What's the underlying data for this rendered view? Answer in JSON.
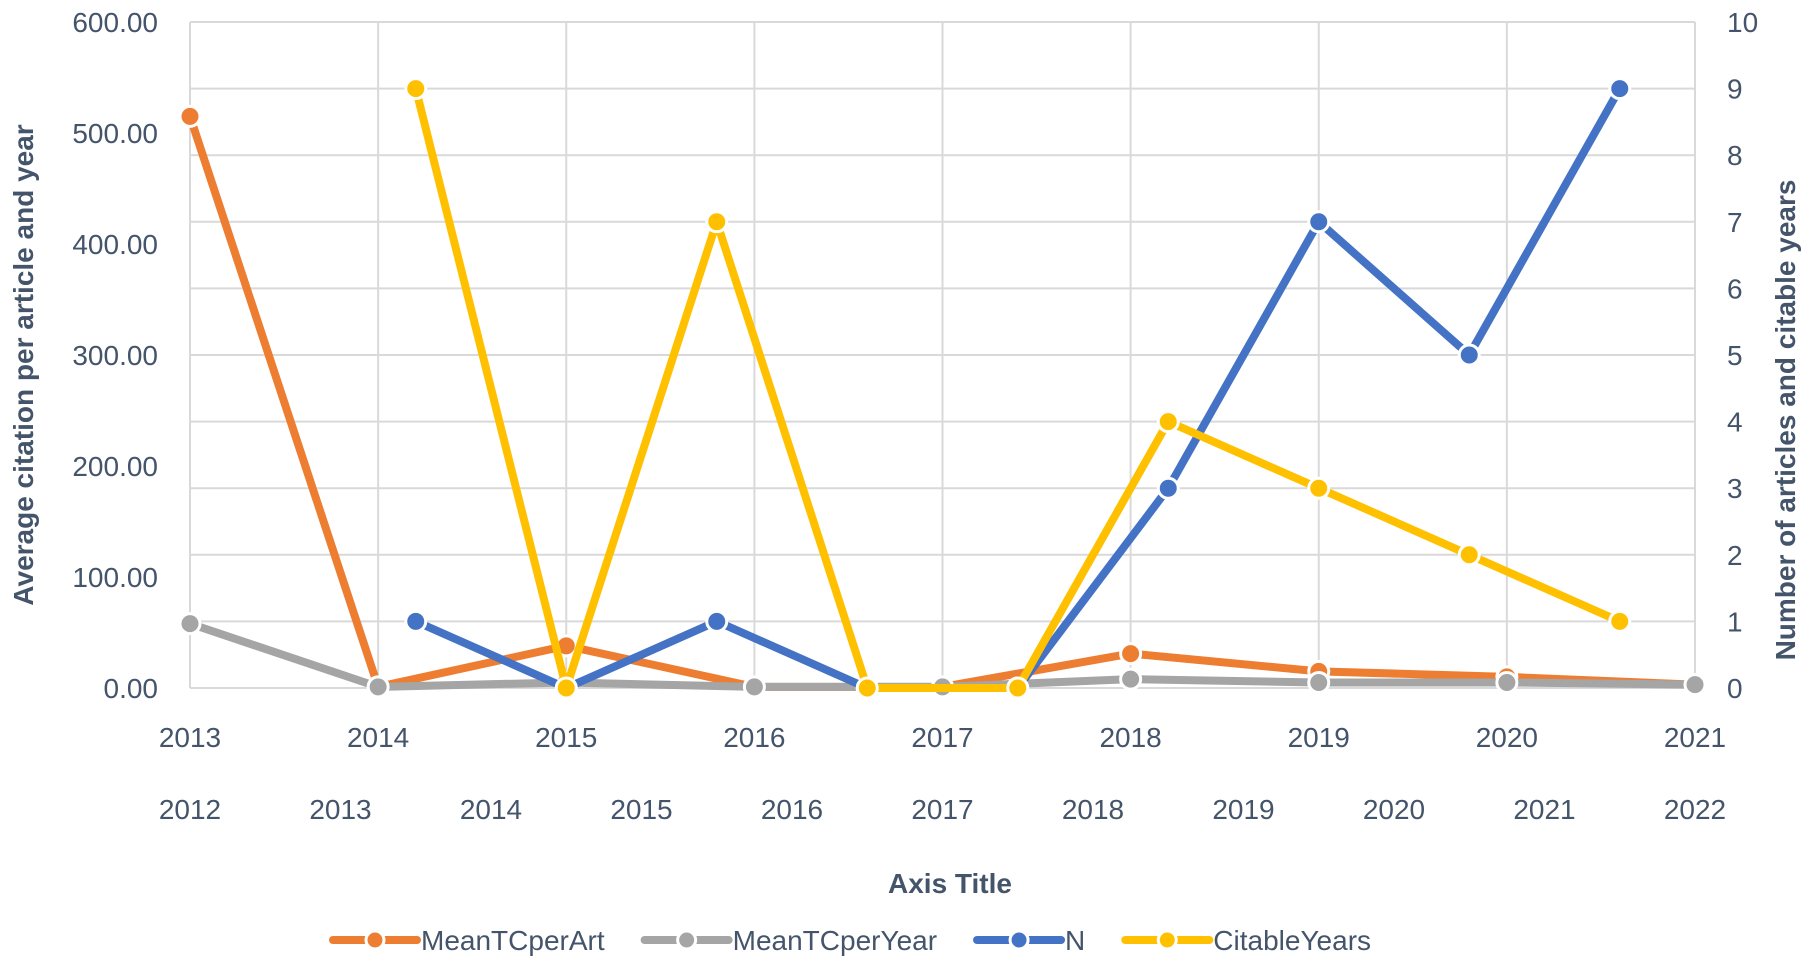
{
  "chart_data": {
    "type": "line",
    "xlabel": "Axis Title",
    "ylabel_left": "Average citation per article and year",
    "ylabel_right": "Number of articles and citable years",
    "grid": true,
    "legend_position": "bottom",
    "x_primary": [
      "2013",
      "2014",
      "2015",
      "2016",
      "2017",
      "2018",
      "2019",
      "2020",
      "2021"
    ],
    "x_secondary": [
      "2012",
      "2013",
      "2014",
      "2015",
      "2016",
      "2017",
      "2018",
      "2019",
      "2020",
      "2021",
      "2022"
    ],
    "y_left": {
      "min": 0,
      "max": 600,
      "step": 100,
      "tick_labels": [
        "0.00",
        "100.00",
        "200.00",
        "300.00",
        "400.00",
        "500.00",
        "600.00"
      ]
    },
    "y_right": {
      "min": 0,
      "max": 10,
      "step": 1,
      "tick_labels": [
        "0",
        "1",
        "2",
        "3",
        "4",
        "5",
        "6",
        "7",
        "8",
        "9",
        "10"
      ]
    },
    "series": [
      {
        "name": "MeanTCperArt",
        "axis": "primary",
        "color": "#ed7d31",
        "points": [
          {
            "x": "2013",
            "y": 515
          },
          {
            "x": "2014",
            "y": 1
          },
          {
            "x": "2015",
            "y": 38
          },
          {
            "x": "2016",
            "y": 1
          },
          {
            "x": "2017",
            "y": 1
          },
          {
            "x": "2018",
            "y": 31
          },
          {
            "x": "2019",
            "y": 15
          },
          {
            "x": "2020",
            "y": 10
          },
          {
            "x": "2021",
            "y": 3
          }
        ]
      },
      {
        "name": "MeanTCperYear",
        "axis": "primary",
        "color": "#a5a5a5",
        "points": [
          {
            "x": "2013",
            "y": 58
          },
          {
            "x": "2014",
            "y": 1
          },
          {
            "x": "2015",
            "y": 5
          },
          {
            "x": "2016",
            "y": 1
          },
          {
            "x": "2017",
            "y": 1
          },
          {
            "x": "2018",
            "y": 8
          },
          {
            "x": "2019",
            "y": 5
          },
          {
            "x": "2020",
            "y": 5
          },
          {
            "x": "2021",
            "y": 3
          }
        ]
      },
      {
        "name": "N",
        "axis": "secondary",
        "color": "#4472c4",
        "points": [
          {
            "x": "2013",
            "y": 1
          },
          {
            "x": "2014",
            "y": 0
          },
          {
            "x": "2015",
            "y": 1
          },
          {
            "x": "2016",
            "y": 0
          },
          {
            "x": "2017",
            "y": 0
          },
          {
            "x": "2018",
            "y": 3
          },
          {
            "x": "2019",
            "y": 7
          },
          {
            "x": "2020",
            "y": 5
          },
          {
            "x": "2021",
            "y": 9
          }
        ]
      },
      {
        "name": "CitableYears",
        "axis": "secondary",
        "color": "#ffc000",
        "points": [
          {
            "x": "2013",
            "y": 9
          },
          {
            "x": "2014",
            "y": 0
          },
          {
            "x": "2015",
            "y": 7
          },
          {
            "x": "2016",
            "y": 0
          },
          {
            "x": "2017",
            "y": 0
          },
          {
            "x": "2018",
            "y": 4
          },
          {
            "x": "2019",
            "y": 3
          },
          {
            "x": "2020",
            "y": 2
          },
          {
            "x": "2021",
            "y": 1
          }
        ]
      }
    ]
  }
}
